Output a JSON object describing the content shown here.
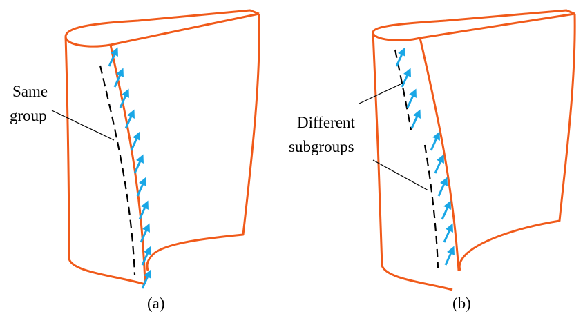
{
  "panels": [
    {
      "caption": "(a)",
      "label": [
        "Same",
        "group"
      ]
    },
    {
      "caption": "(b)",
      "label": [
        "Different",
        "subgroups"
      ]
    }
  ]
}
